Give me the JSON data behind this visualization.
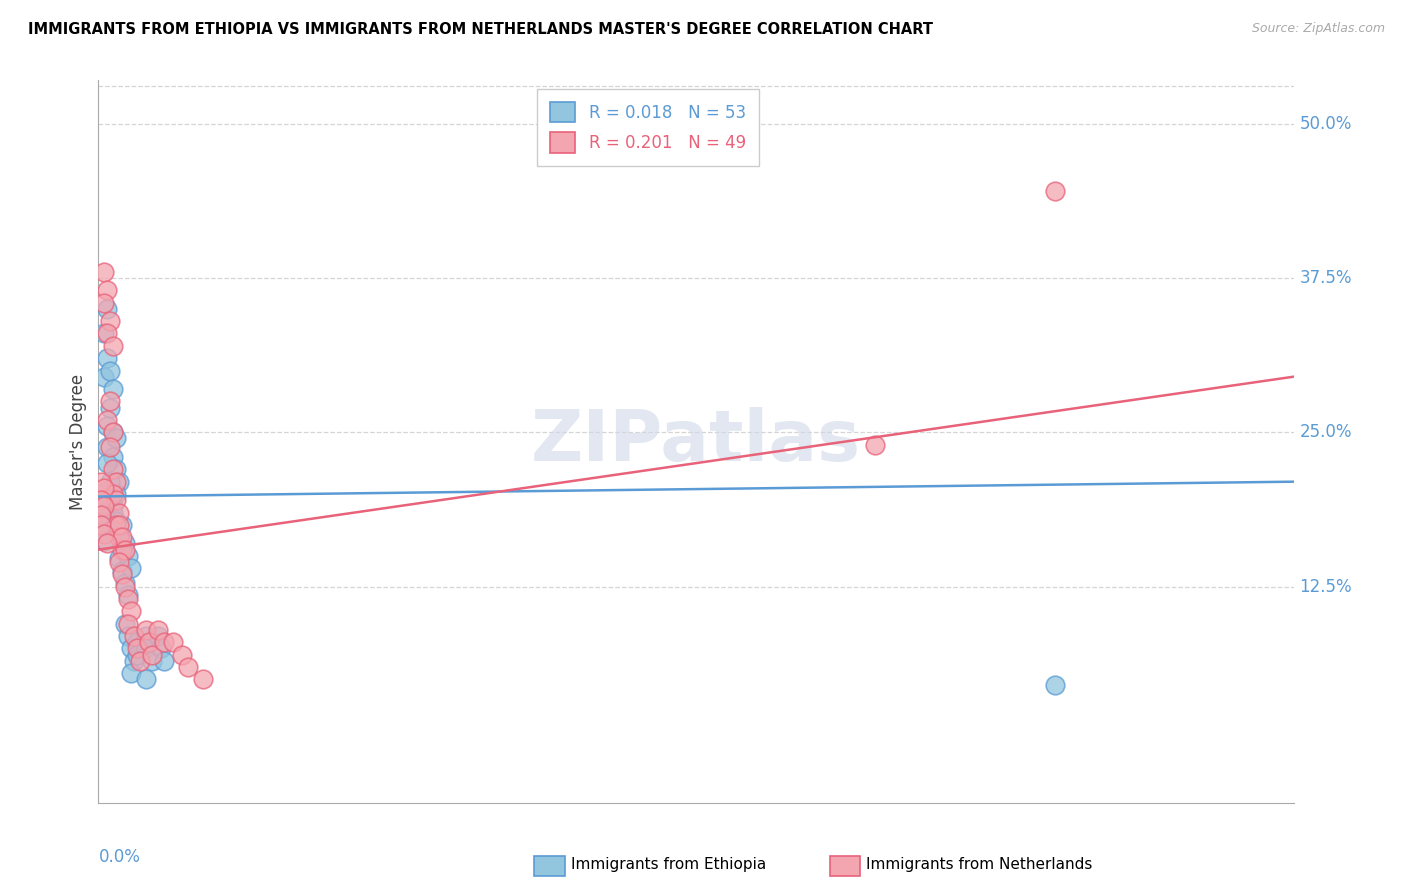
{
  "title": "IMMIGRANTS FROM ETHIOPIA VS IMMIGRANTS FROM NETHERLANDS MASTER'S DEGREE CORRELATION CHART",
  "source": "Source: ZipAtlas.com",
  "ylabel": "Master's Degree",
  "color_ethiopia": "#92c5de",
  "color_netherlands": "#f4a6b0",
  "color_eth_line": "#5b9bd5",
  "color_neth_line": "#e8627a",
  "watermark": "ZIPatlas",
  "xlim": [
    0.0,
    0.4
  ],
  "ylim": [
    -0.05,
    0.535
  ],
  "yticks": [
    0.5,
    0.375,
    0.25,
    0.125
  ],
  "ytick_labels": [
    "50.0%",
    "37.5%",
    "25.0%",
    "12.5%"
  ],
  "grid_color": "#d5d5d5",
  "background_color": "#ffffff",
  "legend_R_eth": "0.018",
  "legend_N_eth": "53",
  "legend_R_neth": "0.201",
  "legend_N_neth": "49",
  "eth_trend_x": [
    0.0,
    0.4
  ],
  "eth_trend_y": [
    0.198,
    0.21
  ],
  "neth_trend_x": [
    0.0,
    0.4
  ],
  "neth_trend_y": [
    0.155,
    0.295
  ],
  "eth_scatter_x": [
    0.002,
    0.003,
    0.003,
    0.002,
    0.004,
    0.005,
    0.004,
    0.003,
    0.005,
    0.003,
    0.006,
    0.005,
    0.006,
    0.007,
    0.006,
    0.005,
    0.004,
    0.003,
    0.004,
    0.005,
    0.006,
    0.007,
    0.008,
    0.007,
    0.008,
    0.009,
    0.01,
    0.008,
    0.009,
    0.01,
    0.011,
    0.009,
    0.01,
    0.011,
    0.012,
    0.011,
    0.013,
    0.013,
    0.016,
    0.016,
    0.018,
    0.02,
    0.021,
    0.022,
    0.016,
    0.001,
    0.002,
    0.001,
    0.002,
    0.001,
    0.001,
    0.002,
    0.32
  ],
  "eth_scatter_y": [
    0.33,
    0.35,
    0.31,
    0.295,
    0.3,
    0.285,
    0.27,
    0.255,
    0.25,
    0.238,
    0.245,
    0.23,
    0.22,
    0.21,
    0.2,
    0.19,
    0.21,
    0.225,
    0.195,
    0.185,
    0.178,
    0.168,
    0.158,
    0.148,
    0.138,
    0.128,
    0.118,
    0.175,
    0.16,
    0.15,
    0.14,
    0.095,
    0.085,
    0.075,
    0.065,
    0.055,
    0.08,
    0.07,
    0.085,
    0.075,
    0.065,
    0.085,
    0.075,
    0.065,
    0.05,
    0.2,
    0.195,
    0.19,
    0.185,
    0.178,
    0.17,
    0.162,
    0.045
  ],
  "neth_scatter_x": [
    0.002,
    0.003,
    0.002,
    0.004,
    0.003,
    0.005,
    0.004,
    0.003,
    0.005,
    0.004,
    0.005,
    0.006,
    0.005,
    0.006,
    0.007,
    0.006,
    0.007,
    0.008,
    0.007,
    0.008,
    0.009,
    0.007,
    0.008,
    0.009,
    0.01,
    0.011,
    0.01,
    0.012,
    0.013,
    0.014,
    0.016,
    0.017,
    0.018,
    0.02,
    0.022,
    0.001,
    0.002,
    0.001,
    0.002,
    0.001,
    0.001,
    0.002,
    0.003,
    0.025,
    0.028,
    0.03,
    0.035,
    0.32,
    0.26
  ],
  "neth_scatter_y": [
    0.38,
    0.365,
    0.355,
    0.34,
    0.33,
    0.32,
    0.275,
    0.26,
    0.25,
    0.238,
    0.22,
    0.21,
    0.2,
    0.195,
    0.185,
    0.175,
    0.165,
    0.155,
    0.175,
    0.165,
    0.155,
    0.145,
    0.135,
    0.125,
    0.115,
    0.105,
    0.095,
    0.085,
    0.075,
    0.065,
    0.09,
    0.08,
    0.07,
    0.09,
    0.08,
    0.21,
    0.205,
    0.195,
    0.19,
    0.183,
    0.175,
    0.168,
    0.16,
    0.08,
    0.07,
    0.06,
    0.05,
    0.445,
    0.24
  ]
}
